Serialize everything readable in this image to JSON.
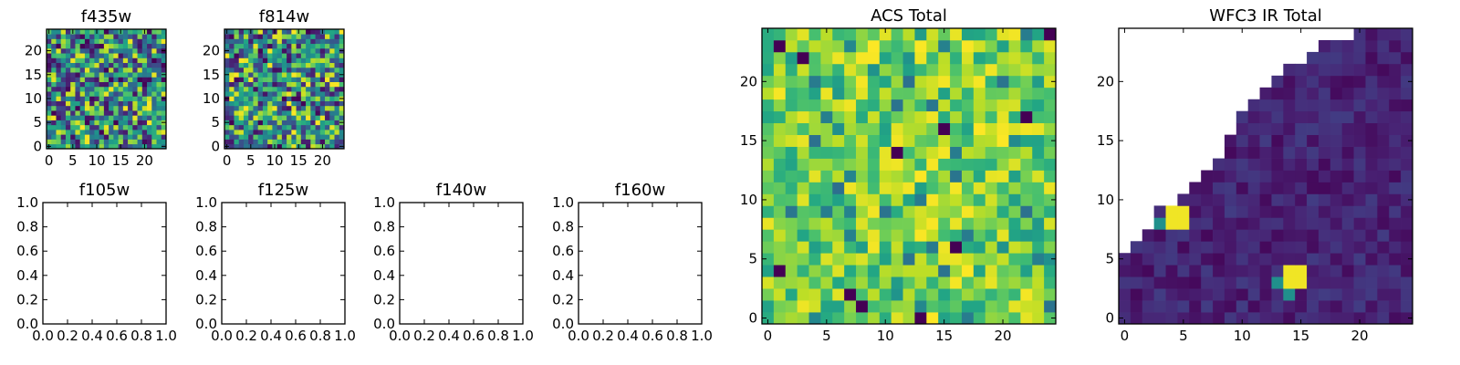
{
  "chart_data": [
    {
      "type": "heatmap",
      "title": "f435w",
      "xlim": [
        -0.5,
        24.5
      ],
      "ylim": [
        -0.5,
        24.5
      ],
      "xticks": [
        0,
        5,
        10,
        15,
        20
      ],
      "yticks": [
        0,
        5,
        10,
        15,
        20
      ],
      "xticklabels": [
        "0",
        "5",
        "10",
        "15",
        "20"
      ],
      "yticklabels": [
        "0",
        "5",
        "10",
        "15",
        "20"
      ],
      "colormap": "viridis",
      "grid": false,
      "pattern": "uniform-noise",
      "value_range": [
        0.0,
        1.0
      ],
      "seed": 11
    },
    {
      "type": "heatmap",
      "title": "f814w",
      "xlim": [
        -0.5,
        24.5
      ],
      "ylim": [
        -0.5,
        24.5
      ],
      "xticks": [
        0,
        5,
        10,
        15,
        20
      ],
      "yticks": [
        0,
        5,
        10,
        15,
        20
      ],
      "xticklabels": [
        "0",
        "5",
        "10",
        "15",
        "20"
      ],
      "yticklabels": [
        "0",
        "5",
        "10",
        "15",
        "20"
      ],
      "colormap": "viridis",
      "grid": false,
      "pattern": "uniform-noise",
      "value_range": [
        0.0,
        1.0
      ],
      "seed": 29
    },
    {
      "type": "empty",
      "title": "f105w",
      "xlim": [
        0,
        1
      ],
      "ylim": [
        0,
        1
      ],
      "xticks": [
        0,
        0.2,
        0.4,
        0.6,
        0.8,
        1.0
      ],
      "yticks": [
        0,
        0.2,
        0.4,
        0.6,
        0.8,
        1.0
      ],
      "xticklabels": [
        "0.0",
        "0.2",
        "0.4",
        "0.6",
        "0.8",
        "1.0"
      ],
      "yticklabels": [
        "0.0",
        "0.2",
        "0.4",
        "0.6",
        "0.8",
        "1.0"
      ]
    },
    {
      "type": "empty",
      "title": "f125w",
      "xlim": [
        0,
        1
      ],
      "ylim": [
        0,
        1
      ],
      "xticks": [
        0,
        0.2,
        0.4,
        0.6,
        0.8,
        1.0
      ],
      "yticks": [
        0,
        0.2,
        0.4,
        0.6,
        0.8,
        1.0
      ],
      "xticklabels": [
        "0.0",
        "0.2",
        "0.4",
        "0.6",
        "0.8",
        "1.0"
      ],
      "yticklabels": [
        "0.0",
        "0.2",
        "0.4",
        "0.6",
        "0.8",
        "1.0"
      ]
    },
    {
      "type": "empty",
      "title": "f140w",
      "xlim": [
        0,
        1
      ],
      "ylim": [
        0,
        1
      ],
      "xticks": [
        0,
        0.2,
        0.4,
        0.6,
        0.8,
        1.0
      ],
      "yticks": [
        0,
        0.2,
        0.4,
        0.6,
        0.8,
        1.0
      ],
      "xticklabels": [
        "0.0",
        "0.2",
        "0.4",
        "0.6",
        "0.8",
        "1.0"
      ],
      "yticklabels": [
        "0.0",
        "0.2",
        "0.4",
        "0.6",
        "0.8",
        "1.0"
      ]
    },
    {
      "type": "empty",
      "title": "f160w",
      "xlim": [
        0,
        1
      ],
      "ylim": [
        0,
        1
      ],
      "xticks": [
        0,
        0.2,
        0.4,
        0.6,
        0.8,
        1.0
      ],
      "yticks": [
        0,
        0.2,
        0.4,
        0.6,
        0.8,
        1.0
      ],
      "xticklabels": [
        "0.0",
        "0.2",
        "0.4",
        "0.6",
        "0.8",
        "1.0"
      ],
      "yticklabels": [
        "0.0",
        "0.2",
        "0.4",
        "0.6",
        "0.8",
        "1.0"
      ]
    },
    {
      "type": "heatmap",
      "title": "ACS Total",
      "xlim": [
        -0.5,
        24.5
      ],
      "ylim": [
        -0.5,
        24.5
      ],
      "xticks": [
        0,
        5,
        10,
        15,
        20
      ],
      "yticks": [
        0,
        5,
        10,
        15,
        20
      ],
      "xticklabels": [
        "0",
        "5",
        "10",
        "15",
        "20"
      ],
      "yticklabels": [
        "0",
        "5",
        "10",
        "15",
        "20"
      ],
      "colormap": "viridis",
      "grid": false,
      "pattern": "noise-high-mean",
      "value_range": [
        0.0,
        1.0
      ],
      "seed": 47,
      "low_cells": [
        [
          23,
          1
        ],
        [
          24,
          24
        ],
        [
          22,
          3
        ],
        [
          4,
          1
        ],
        [
          2,
          7
        ],
        [
          1,
          8
        ],
        [
          0,
          13
        ],
        [
          6,
          16
        ],
        [
          17,
          22
        ],
        [
          16,
          15
        ],
        [
          14,
          11
        ]
      ]
    },
    {
      "type": "heatmap",
      "title": "WFC3 IR Total",
      "xlim": [
        -0.5,
        24.5
      ],
      "ylim": [
        -0.5,
        24.5
      ],
      "xticks": [
        0,
        5,
        10,
        15,
        20
      ],
      "yticks": [
        0,
        5,
        10,
        15,
        20
      ],
      "xticklabels": [
        "0",
        "5",
        "10",
        "15",
        "20"
      ],
      "yticklabels": [
        "0",
        "5",
        "10",
        "15",
        "20"
      ],
      "colormap": "viridis",
      "grid": false,
      "pattern": "masked-triangle",
      "value_range": [
        0.0,
        1.0
      ],
      "seed": 83,
      "row_start_col": [
        0,
        0,
        0,
        0,
        0,
        0,
        1,
        2,
        3,
        3,
        5,
        6,
        7,
        8,
        9,
        9,
        10,
        10,
        11,
        12,
        13,
        14,
        16,
        17,
        20
      ],
      "bright_cells": [
        [
          8,
          4
        ],
        [
          8,
          5
        ],
        [
          9,
          4
        ],
        [
          9,
          5
        ],
        [
          3,
          14
        ],
        [
          3,
          15
        ],
        [
          4,
          14
        ],
        [
          4,
          15
        ]
      ],
      "mid_cells": [
        [
          2,
          14
        ],
        [
          3,
          13
        ],
        [
          8,
          3
        ]
      ]
    }
  ]
}
